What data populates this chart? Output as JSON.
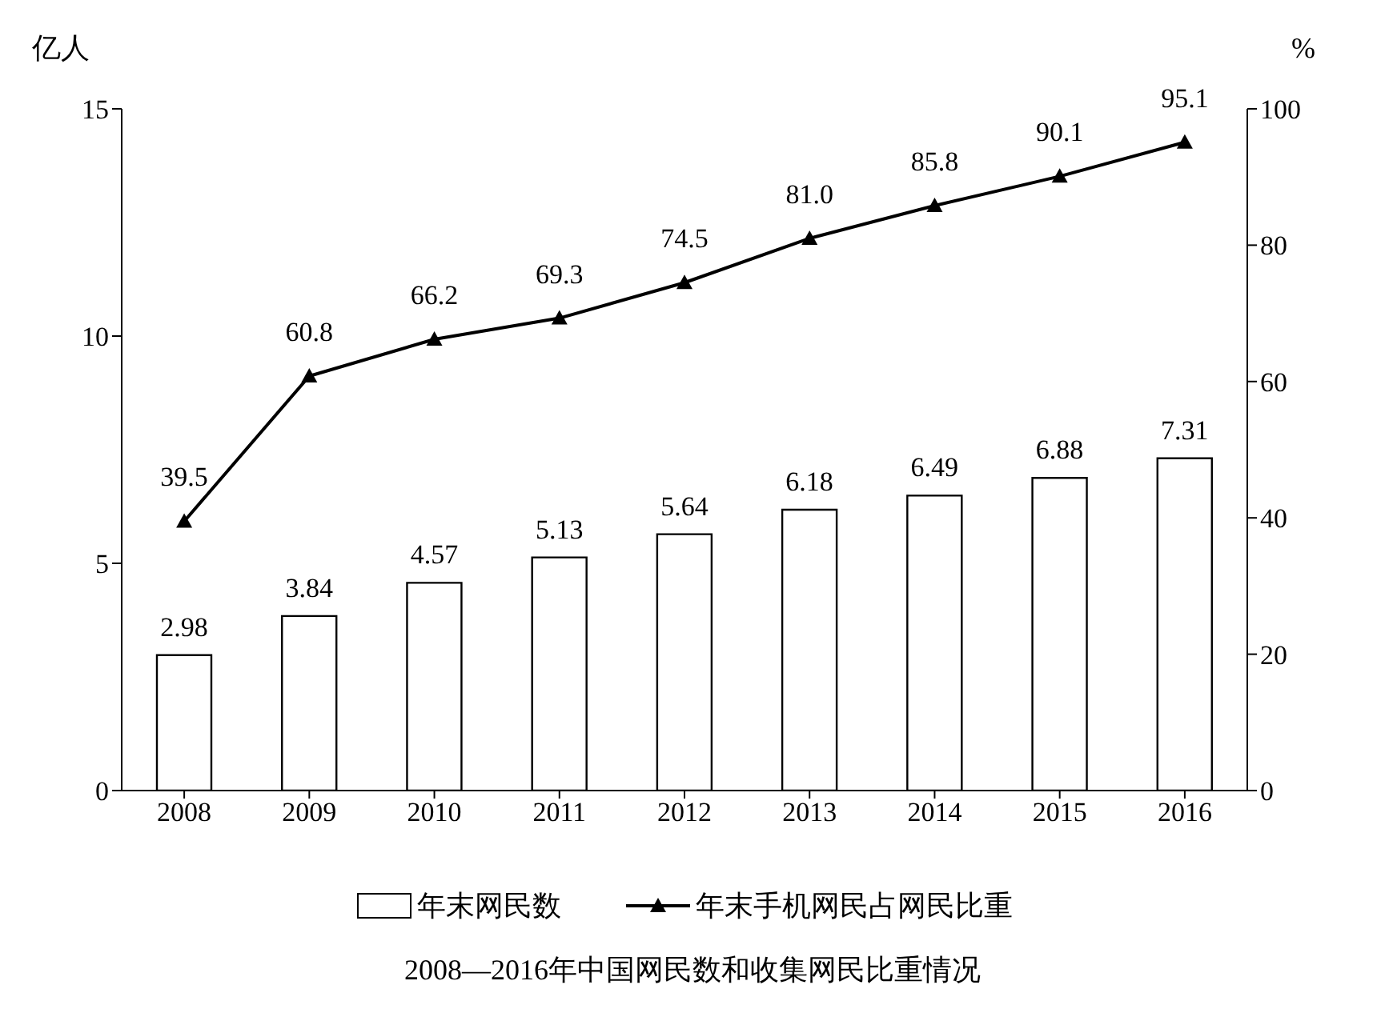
{
  "chart_data": {
    "type": "bar",
    "title": "2008—2016年中国网民数和收集网民比重情况",
    "ylabel": "亿人",
    "y2label": "%",
    "categories": [
      "2008",
      "2009",
      "2010",
      "2011",
      "2012",
      "2013",
      "2014",
      "2015",
      "2016"
    ],
    "series": [
      {
        "name": "年末网民数",
        "color": "#ffffff",
        "values": [
          2.98,
          3.84,
          4.57,
          5.13,
          5.64,
          6.18,
          6.49,
          6.88,
          7.31
        ],
        "value_labels": [
          "2.98",
          "3.84",
          "4.57",
          "5.13",
          "5.64",
          "6.18",
          "6.49",
          "6.88",
          "7.31"
        ]
      },
      {
        "name": "年末手机网民占网民比重",
        "type": "line",
        "axis": "y2",
        "color": "#000000",
        "values": [
          39.5,
          60.8,
          66.2,
          69.3,
          74.5,
          81.0,
          85.8,
          90.1,
          95.1
        ],
        "value_labels": [
          "39.5",
          "60.8",
          "66.2",
          "69.3",
          "74.5",
          "81.0",
          "85.8",
          "90.1",
          "95.1"
        ]
      }
    ],
    "ylim": [
      0,
      15
    ],
    "yticks": [
      0,
      5,
      10,
      15
    ],
    "y2lim": [
      0,
      100
    ],
    "y2ticks": [
      0,
      20,
      40,
      60,
      80,
      100
    ],
    "legend": "bottom",
    "marker": "triangle",
    "line_style": "solid"
  }
}
